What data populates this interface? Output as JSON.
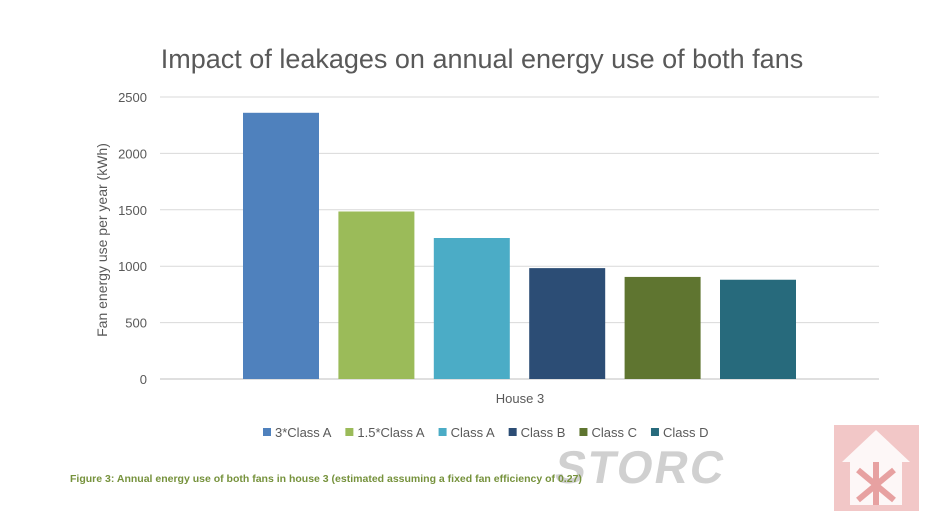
{
  "chart_data": {
    "type": "bar",
    "title": "Impact of leakages on annual energy use of both fans",
    "ylabel": "Fan energy use per year (kWh)",
    "xlabel": "",
    "categories": [
      "House 3"
    ],
    "series": [
      {
        "name": "3*Class A",
        "values": [
          2360
        ],
        "color": "#4f81bd"
      },
      {
        "name": "1.5*Class A",
        "values": [
          1485
        ],
        "color": "#9bbb59"
      },
      {
        "name": "Class A",
        "values": [
          1250
        ],
        "color": "#4bacc6"
      },
      {
        "name": "Class B",
        "values": [
          983
        ],
        "color": "#2c4d75"
      },
      {
        "name": "Class C",
        "values": [
          905
        ],
        "color": "#5f7530"
      },
      {
        "name": "Class D",
        "values": [
          880
        ],
        "color": "#276a7c"
      }
    ],
    "ylim": [
      0,
      2500
    ],
    "yticks": [
      0,
      500,
      1000,
      1500,
      2000,
      2500
    ],
    "grid": true,
    "legend_position": "bottom"
  },
  "caption": "Figure 3: Annual energy use of both fans in house 3 (estimated assuming a fixed fan efficiency of 0.27)",
  "logo": {
    "text": "STORC",
    "color": "#e8a0a0"
  }
}
